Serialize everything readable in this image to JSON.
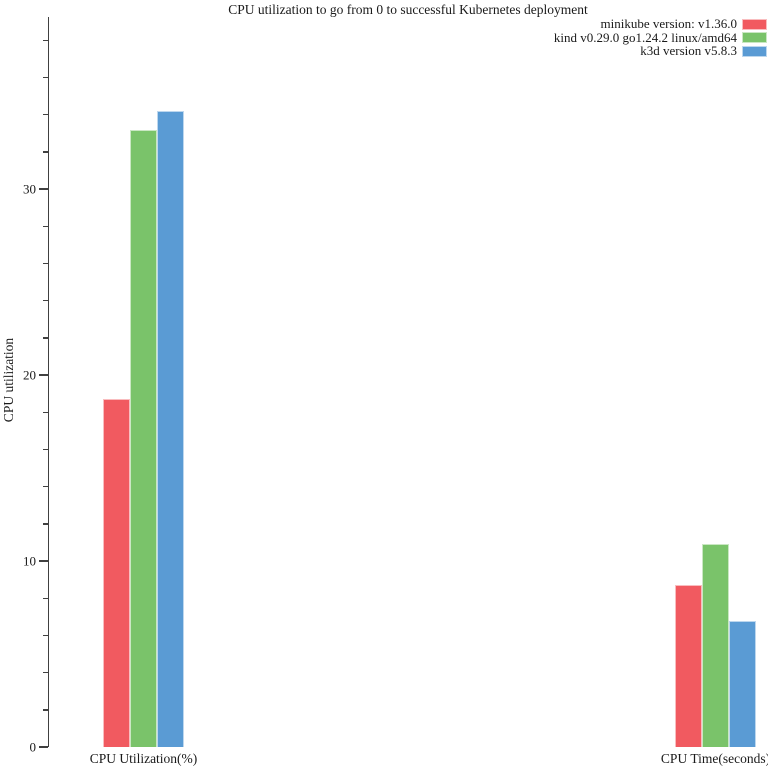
{
  "title": "CPU utilization to go from 0 to successful Kubernetes deployment",
  "y_axis": {
    "label": "CPU utilization",
    "major_ticks": [
      0,
      10,
      20,
      30
    ],
    "minor_step": 2,
    "max": 39.25
  },
  "x_axis": {
    "categories": [
      "CPU Utilization(%)",
      "CPU Time(seconds)"
    ]
  },
  "legend": {
    "position": "top-right",
    "items": [
      {
        "label": "minikube version: v1.36.0",
        "color": "#f15a60"
      },
      {
        "label": "kind v0.29.0 go1.24.2 linux/amd64",
        "color": "#7ac36a"
      },
      {
        "label": "k3d version v5.8.3",
        "color": "#5a9bd4"
      }
    ]
  },
  "colors": {
    "axis": "#404040",
    "text": "#1a1a1a",
    "background": "#ffffff"
  },
  "chart_data": {
    "type": "bar",
    "categories": [
      "CPU Utilization(%)",
      "CPU Time(seconds)"
    ],
    "series": [
      {
        "name": "minikube version: v1.36.0",
        "color": "#f15a60",
        "values": [
          18.7,
          8.7
        ]
      },
      {
        "name": "kind v0.29.0 go1.24.2 linux/amd64",
        "color": "#7ac36a",
        "values": [
          33.2,
          10.9
        ]
      },
      {
        "name": "k3d version v5.8.3",
        "color": "#5a9bd4",
        "values": [
          34.2,
          6.8
        ]
      }
    ],
    "title": "CPU utilization to go from 0 to successful Kubernetes deployment",
    "xlabel": "",
    "ylabel": "CPU utilization",
    "ylim": [
      0,
      39.25
    ],
    "yticks": [
      0,
      10,
      20,
      30
    ],
    "minor_tick_step": 2,
    "grid": false,
    "legend_position": "top-right"
  }
}
